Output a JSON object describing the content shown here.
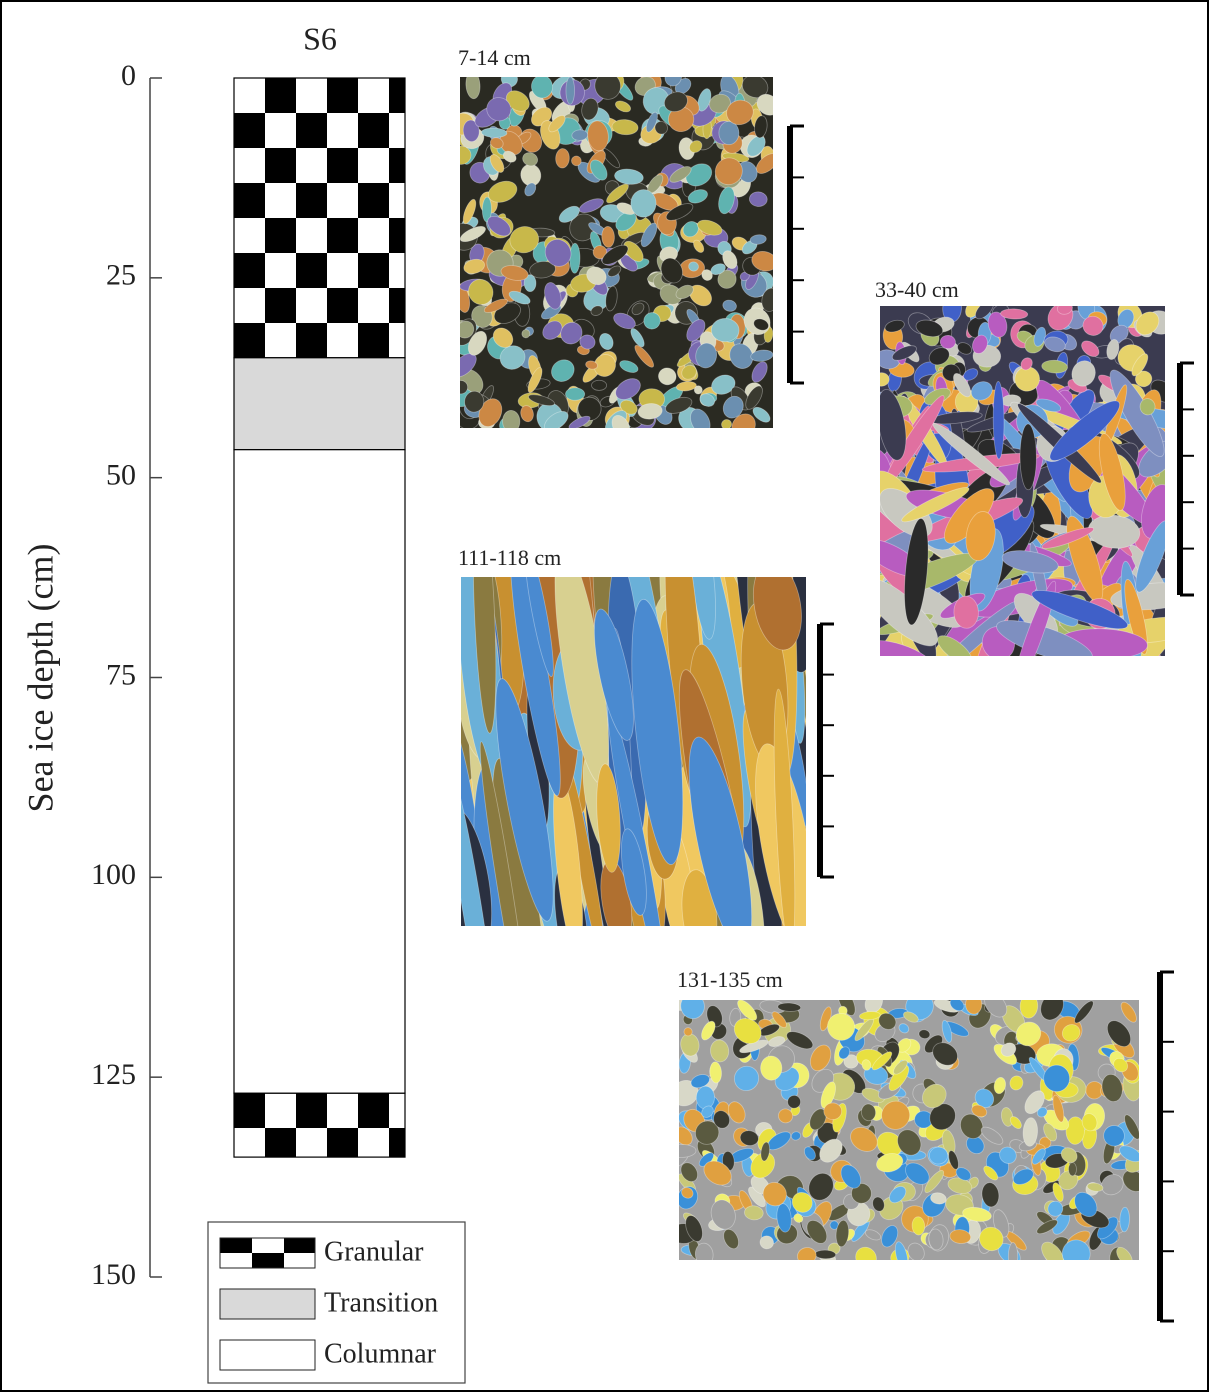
{
  "chart_data": {
    "type": "column",
    "title": "S6",
    "ylabel": "Sea ice depth (cm)",
    "ylim": [
      0,
      150
    ],
    "yticks": [
      0,
      25,
      50,
      75,
      100,
      125,
      150
    ],
    "series": [
      {
        "name": "Granular",
        "color": "checker",
        "ranges": [
          [
            0,
            35
          ],
          [
            127,
            135
          ]
        ]
      },
      {
        "name": "Transition",
        "color": "#d9d9d9",
        "ranges": [
          [
            35,
            46.5
          ]
        ]
      },
      {
        "name": "Columnar",
        "color": "#ffffff",
        "ranges": [
          [
            46.5,
            127
          ]
        ]
      }
    ],
    "images": [
      {
        "label": "7-14 cm"
      },
      {
        "label": "33-40 cm"
      },
      {
        "label": "111-118 cm"
      },
      {
        "label": "131-135 cm"
      }
    ]
  }
}
